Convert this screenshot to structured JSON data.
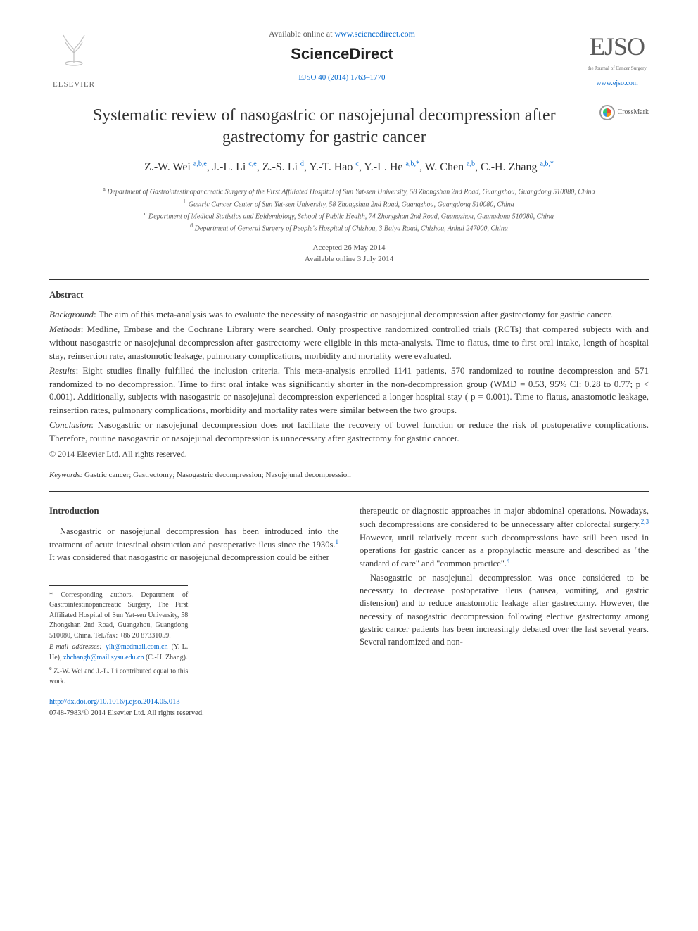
{
  "header": {
    "elsevier": "ELSEVIER",
    "available_prefix": "Available online at ",
    "available_url": "www.sciencedirect.com",
    "sciencedirect": "ScienceDirect",
    "citation": "EJSO 40 (2014) 1763–1770",
    "ejso": "EJSO",
    "ejso_sub": "the Journal of Cancer Surgery",
    "ejso_url": "www.ejso.com"
  },
  "crossmark": "CrossMark",
  "title": "Systematic review of nasogastric or nasojejunal decompression after gastrectomy for gastric cancer",
  "authors": [
    {
      "name": "Z.-W. Wei",
      "sup": "a,b,e"
    },
    {
      "name": "J.-L. Li",
      "sup": "c,e"
    },
    {
      "name": "Z.-S. Li",
      "sup": "d"
    },
    {
      "name": "Y.-T. Hao",
      "sup": "c"
    },
    {
      "name": "Y.-L. He",
      "sup": "a,b,*"
    },
    {
      "name": "W. Chen",
      "sup": "a,b"
    },
    {
      "name": "C.-H. Zhang",
      "sup": "a,b,*"
    }
  ],
  "affiliations": {
    "a": "Department of Gastrointestinopancreatic Surgery of the First Affiliated Hospital of Sun Yat-sen University, 58 Zhongshan 2nd Road, Guangzhou, Guangdong 510080, China",
    "b": "Gastric Cancer Center of Sun Yat-sen University, 58 Zhongshan 2nd Road, Guangzhou, Guangdong 510080, China",
    "c": "Department of Medical Statistics and Epidemiology, School of Public Health, 74 Zhongshan 2nd Road, Guangzhou, Guangdong 510080, China",
    "d": "Department of General Surgery of People's Hospital of Chizhou, 3 Baiya Road, Chizhou, Anhui 247000, China"
  },
  "dates": {
    "accepted": "Accepted 26 May 2014",
    "online": "Available online 3 July 2014"
  },
  "abstract": {
    "heading": "Abstract",
    "background_label": "Background",
    "background": ": The aim of this meta-analysis was to evaluate the necessity of nasogastric or nasojejunal decompression after gastrectomy for gastric cancer.",
    "methods_label": "Methods",
    "methods": ": Medline, Embase and the Cochrane Library were searched. Only prospective randomized controlled trials (RCTs) that compared subjects with and without nasogastric or nasojejunal decompression after gastrectomy were eligible in this meta-analysis. Time to flatus, time to first oral intake, length of hospital stay, reinsertion rate, anastomotic leakage, pulmonary complications, morbidity and mortality were evaluated.",
    "results_label": "Results",
    "results": ": Eight studies finally fulfilled the inclusion criteria. This meta-analysis enrolled 1141 patients, 570 randomized to routine decompression and 571 randomized to no decompression. Time to first oral intake was significantly shorter in the non-decompression group (WMD = 0.53, 95% CI: 0.28 to 0.77; p < 0.001). Additionally, subjects with nasogastric or nasojejunal decompression experienced a longer hospital stay ( p = 0.001). Time to flatus, anastomotic leakage, reinsertion rates, pulmonary complications, morbidity and mortality rates were similar between the two groups.",
    "conclusion_label": "Conclusion",
    "conclusion": ": Nasogastric or nasojejunal decompression does not facilitate the recovery of bowel function or reduce the risk of postoperative complications. Therefore, routine nasogastric or nasojejunal decompression is unnecessary after gastrectomy for gastric cancer.",
    "copyright": "© 2014 Elsevier Ltd. All rights reserved."
  },
  "keywords": {
    "label": "Keywords:",
    "text": " Gastric cancer; Gastrectomy; Nasogastric decompression; Nasojejunal decompression"
  },
  "introduction": {
    "heading": "Introduction",
    "p1": "Nasogastric or nasojejunal decompression has been introduced into the treatment of acute intestinal obstruction and postoperative ileus since the 1930s.",
    "ref1": "1",
    "p1b": " It was considered that nasogastric or nasojejunal decompression could be either",
    "p2a": "therapeutic or diagnostic approaches in major abdominal operations. Nowadays, such decompressions are considered to be unnecessary after colorectal surgery.",
    "ref2": "2,3",
    "p2b": " However, until relatively recent such decompressions have still been used in operations for gastric cancer as a prophylactic measure and described as \"the standard of care\" and \"common practice\".",
    "ref3": "4",
    "p3": "Nasogastric or nasojejunal decompression was once considered to be necessary to decrease postoperative ileus (nausea, vomiting, and gastric distension) and to reduce anastomotic leakage after gastrectomy. However, the necessity of nasogastric decompression following elective gastrectomy among gastric cancer patients has been increasingly debated over the last several years. Several randomized and non-"
  },
  "footnotes": {
    "corr": "* Corresponding authors. Department of Gastrointestinopancreatic Surgery, The First Affiliated Hospital of Sun Yat-sen University, 58 Zhongshan 2nd Road, Guangzhou, Guangdong 510080, China. Tel./fax: +86 20 87331059.",
    "email_label": "E-mail addresses: ",
    "email1": "ylh@medmail.com.cn",
    "email1_name": " (Y.-L. He), ",
    "email2": "zhchangh@mail.sysu.edu.cn",
    "email2_name": " (C.-H. Zhang).",
    "contrib": "Z.-W. Wei and J.-L. Li contributed equal to this work.",
    "contrib_sup": "e"
  },
  "doi": {
    "url": "http://dx.doi.org/10.1016/j.ejso.2014.05.013",
    "issn": "0748-7983/© 2014 Elsevier Ltd. All rights reserved."
  },
  "colors": {
    "link": "#0066cc",
    "text": "#3a3a3a",
    "rule": "#333333"
  }
}
